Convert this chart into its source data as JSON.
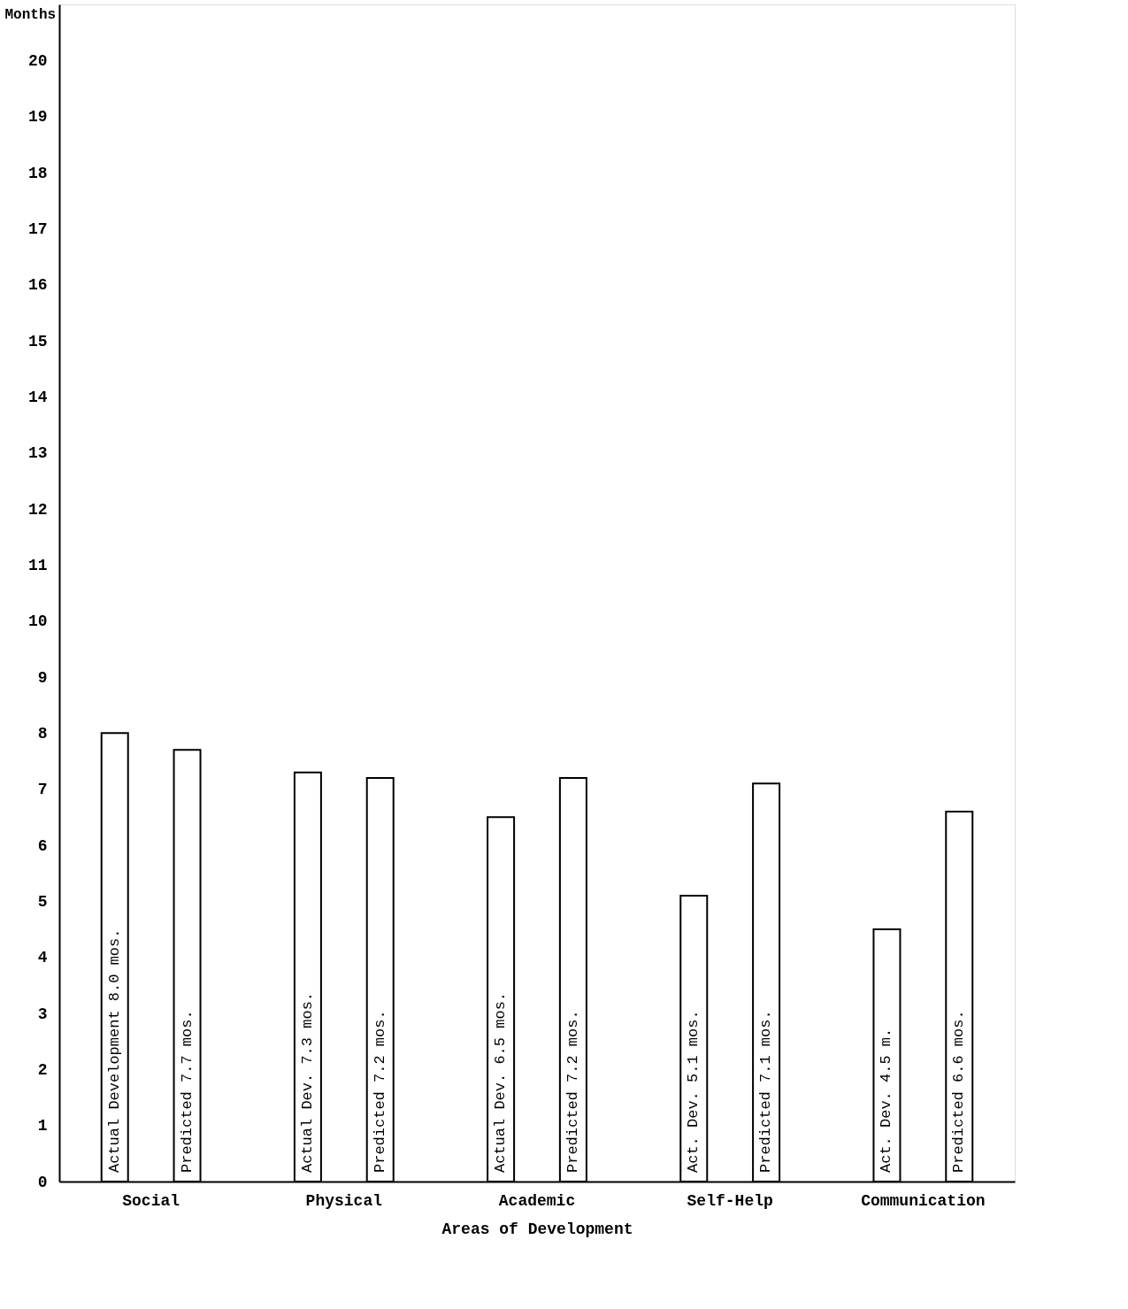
{
  "chart_data": {
    "type": "bar",
    "xlabel": "Areas of Development",
    "ylabel": "Months",
    "categories": [
      "Social",
      "Physical",
      "Academic",
      "Self-Help",
      "Communication"
    ],
    "series": [
      {
        "color": "#ffffff",
        "values": [
          8.0,
          7.3,
          6.5,
          5.1,
          4.5
        ],
        "value_labels": [
          "Actual Development 8.0 mos.",
          "Actual Dev. 7.3 mos.",
          "Actual Dev. 6.5 mos.",
          "Act. Dev. 5.1 mos.",
          "Act. Dev. 4.5 m."
        ]
      },
      {
        "color": "#ffffff",
        "values": [
          7.7,
          7.2,
          7.2,
          7.1,
          6.6
        ],
        "value_labels": [
          "Predicted 7.7 mos.",
          "Predicted 7.2 mos.",
          "Predicted 7.2 mos.",
          "Predicted 7.1 mos.",
          "Predicted 6.6 mos."
        ]
      }
    ],
    "ylim": [
      0,
      21
    ],
    "yticks": [
      0,
      1,
      2,
      3,
      4,
      5,
      6,
      7,
      8,
      9,
      10,
      11,
      12,
      13,
      14,
      15,
      16,
      17,
      18,
      19,
      20
    ],
    "grid": false
  }
}
